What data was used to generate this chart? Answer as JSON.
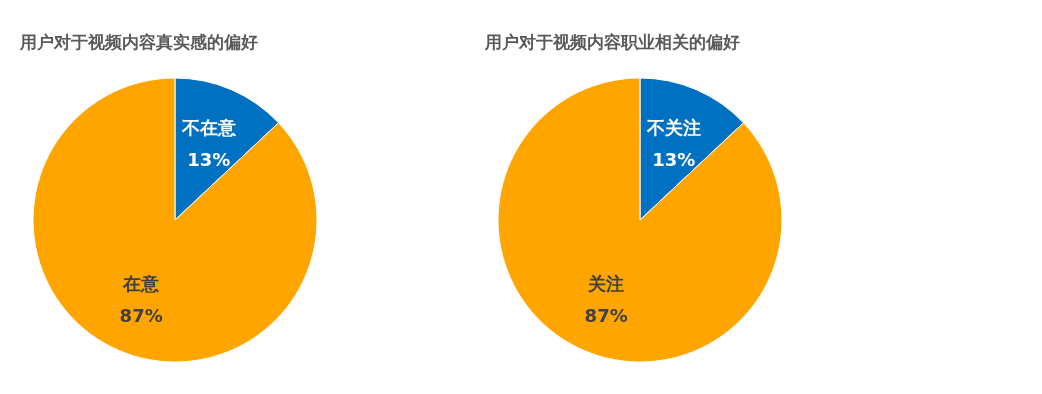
{
  "chart_data": [
    {
      "type": "pie",
      "title": "用户对于视频内容真实感的偏好",
      "categories": [
        "不在意",
        "在意"
      ],
      "values": [
        13,
        87
      ],
      "value_labels": [
        "13%",
        "87%"
      ],
      "colors": [
        "#0070c0",
        "#ffa500"
      ]
    },
    {
      "type": "pie",
      "title": "用户对于视频内容职业相关的偏好",
      "categories": [
        "不关注",
        "关注"
      ],
      "values": [
        13,
        87
      ],
      "value_labels": [
        "13%",
        "87%"
      ],
      "colors": [
        "#0070c0",
        "#ffa500"
      ]
    }
  ]
}
